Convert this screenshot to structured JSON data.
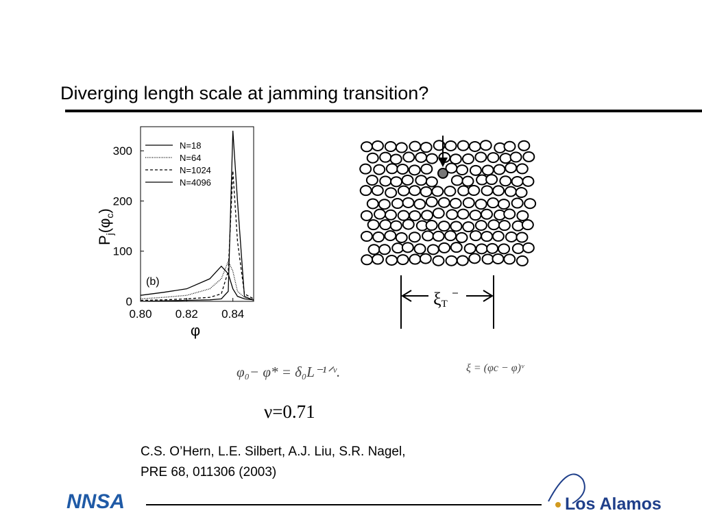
{
  "title": "Diverging length scale at jamming transition?",
  "chart_data": {
    "type": "line",
    "x": [
      0.8,
      0.81,
      0.82,
      0.83,
      0.835,
      0.838,
      0.84,
      0.842,
      0.845,
      0.849
    ],
    "series": [
      {
        "name": "N=18",
        "color": "#000000",
        "dash": "solid",
        "values": [
          12,
          18,
          25,
          45,
          70,
          55,
          25,
          10,
          5,
          3
        ]
      },
      {
        "name": "N=64",
        "color": "#000000",
        "dash": "dotted",
        "values": [
          5,
          8,
          12,
          25,
          45,
          80,
          60,
          20,
          8,
          4
        ]
      },
      {
        "name": "N=1024",
        "color": "#000000",
        "dash": "dashed",
        "values": [
          2,
          3,
          5,
          8,
          15,
          60,
          260,
          120,
          15,
          5
        ]
      },
      {
        "name": "N=4096",
        "color": "#000000",
        "dash": "solid",
        "values": [
          0,
          1,
          2,
          3,
          5,
          20,
          340,
          200,
          10,
          2
        ]
      }
    ],
    "xlim": [
      0.8,
      0.849
    ],
    "ylim": [
      0,
      348
    ],
    "xticks": [
      {
        "value": 0.8,
        "label": "0.80"
      },
      0.82,
      0.84
    ],
    "yticks": [
      0,
      100,
      200,
      300
    ],
    "x_label": "φ",
    "y_label_parts": [
      "P",
      "j",
      "(φ",
      "c",
      ")"
    ],
    "annotation": "(b)"
  },
  "diagram": {
    "label": "ξ",
    "label_sub": "T"
  },
  "equations": [
    "φ₀− φ* = δ₀L⁻¹ᐟᵛ.",
    "ξ = (φc − φ)ᵛ"
  ],
  "exponent": "ν=0.71",
  "citation": [
    "C.S. O’Hern, L.E. Silbert, A.J. Liu, S.R. Nagel,",
    "PRE 68, 011306 (2003)"
  ],
  "logos": {
    "left": "NNSA",
    "right": "Los Alamos"
  }
}
